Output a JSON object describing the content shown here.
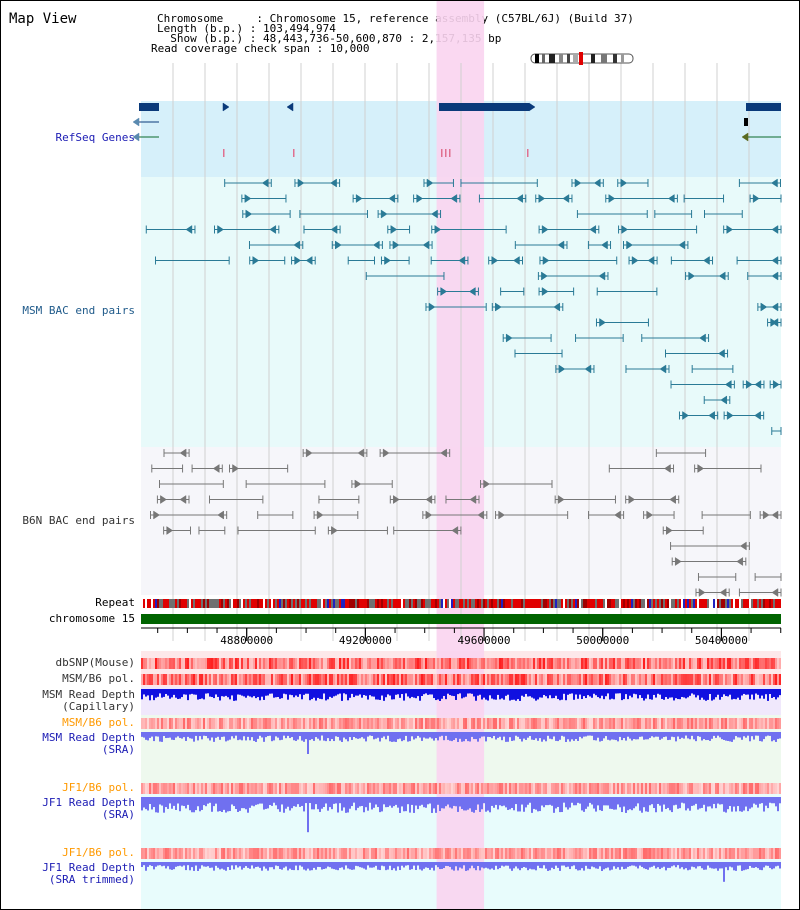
{
  "panel": {
    "title": "Map View"
  },
  "info": {
    "chromosome_key": "Chromosome     : ",
    "chromosome_value": "Chromosome 15, reference assembly (C57BL/6J) (Build 37)",
    "length_key": "Length (b.p.) : ",
    "length_value": "103,494,974",
    "show_key": "  Show (b.p.) : ",
    "show_value": "48,443,736-50,600,870 : 2,157,135 bp",
    "span_key": "Read coverage check span : ",
    "span_value": "10,000"
  },
  "view": {
    "start": 48443736,
    "end": 50600870
  },
  "highlight": {
    "start": 49440000,
    "end": 49600000
  },
  "tracks": {
    "refseq": {
      "label": "RefSeq Genes",
      "color": "#1c1cb4"
    },
    "msm_bac": {
      "label": "MSM BAC end pairs",
      "color": "#1f5a8a"
    },
    "b6n_bac": {
      "label": "B6N BAC end pairs",
      "color": "#333333"
    },
    "repeat": {
      "label": "Repeat",
      "color": "#000000"
    },
    "chromosome": {
      "label": "chromosome 15",
      "color": "#000000"
    },
    "dbsnp": {
      "label": "dbSNP(Mouse)",
      "color": "#333333"
    },
    "msm_b6_pol_1": {
      "label": "MSM/B6 pol.",
      "color": "#333333"
    },
    "msm_cap_depth": {
      "label": "MSM Read Depth\n(Capillary)",
      "color": "#333333"
    },
    "msm_b6_pol_2": {
      "label": "MSM/B6 pol.",
      "color": "#ff9900"
    },
    "msm_sra_depth": {
      "label": "MSM Read Depth\n(SRA)",
      "color": "#1c1cb4"
    },
    "jf1_b6_pol_1": {
      "label": "JF1/B6 pol.",
      "color": "#ff9900"
    },
    "jf1_sra_depth": {
      "label": "JF1 Read Depth\n(SRA)",
      "color": "#1c1cb4"
    },
    "jf1_b6_pol_2": {
      "label": "JF1/B6 pol.",
      "color": "#ff9900"
    },
    "jf1_trim_depth": {
      "label": "JF1 Read Depth\n(SRA trimmed)",
      "color": "#1c1cb4"
    }
  },
  "axis": {
    "ticks": [
      {
        "pos": 48800000,
        "label": "48800000"
      },
      {
        "pos": 49200000,
        "label": "49200000"
      },
      {
        "pos": 49600000,
        "label": "49600000"
      },
      {
        "pos": 50000000,
        "label": "50000000"
      },
      {
        "pos": 50400000,
        "label": "50400000"
      }
    ]
  },
  "colors": {
    "refseq_bg": "#d6f0fa",
    "msm_bg": "#e8fafa",
    "b6n_bg": "#f6f6fa",
    "highlight": "#f9d4f0",
    "gene": "#0a3a7a",
    "msm_feature": "#2a7a96",
    "b6n_feature": "#777777",
    "chromosome_bar": "#006400",
    "depth_blue": "#1010e0",
    "depth_light": "#7070f0"
  }
}
